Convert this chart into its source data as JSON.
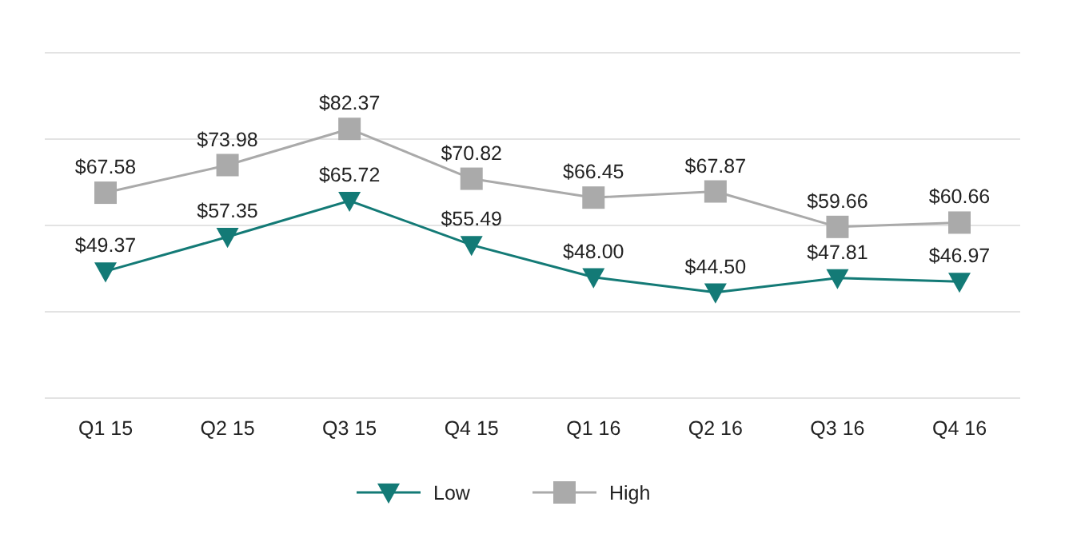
{
  "chart_data": {
    "type": "line",
    "categories": [
      "Q1 15",
      "Q2 15",
      "Q3 15",
      "Q4 15",
      "Q1 16",
      "Q2 16",
      "Q3 16",
      "Q4 16"
    ],
    "series": [
      {
        "name": "Low",
        "color": "#137a76",
        "marker": "triangle",
        "values": [
          49.37,
          57.35,
          65.72,
          55.49,
          48.0,
          44.5,
          47.81,
          46.97
        ],
        "value_labels": [
          "$49.37",
          "$57.35",
          "$65.72",
          "$55.49",
          "$48.00",
          "$44.50",
          "$47.81",
          "$46.97"
        ]
      },
      {
        "name": "High",
        "color": "#aaaaaa",
        "marker": "square",
        "values": [
          67.58,
          73.98,
          82.37,
          70.82,
          66.45,
          67.87,
          59.66,
          60.66
        ],
        "value_labels": [
          "$67.58",
          "$73.98",
          "$82.37",
          "$70.82",
          "$66.45",
          "$67.87",
          "$59.66",
          "$60.66"
        ]
      }
    ],
    "ylim": [
      20,
      100
    ],
    "yticks": [
      {
        "value": 20,
        "label": null
      },
      {
        "value": 40,
        "label": null
      },
      {
        "value": 60,
        "label": null
      },
      {
        "value": 80,
        "label": null
      },
      {
        "value": 100,
        "label": null
      }
    ],
    "tick_labels": "x",
    "grid": "y",
    "legend": "bottom",
    "line_style": "solid"
  }
}
